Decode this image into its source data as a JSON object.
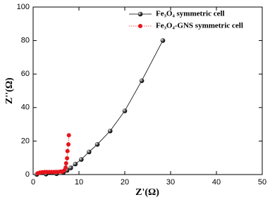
{
  "chart_data": {
    "type": "line",
    "x_label": "Z'(Ω)",
    "y_label": "Z''(Ω)",
    "xlim": [
      0,
      50
    ],
    "xticks": [
      0,
      10,
      20,
      30,
      40,
      50
    ],
    "ylim": [
      0,
      100
    ],
    "yticks": [
      0,
      20,
      40,
      60,
      80,
      100
    ],
    "legend": "top-right",
    "series": [
      {
        "name": "Fe₃O₄ symmetric cell",
        "color": "#000000",
        "line_style": "solid",
        "x": [
          0.8,
          2.8,
          5.1,
          6.6,
          7.4,
          8.2,
          9.2,
          10.5,
          12.2,
          14,
          16.8,
          20,
          23.7,
          28.3
        ],
        "values": [
          0.1,
          0.3,
          0.5,
          1.3,
          2.5,
          4,
          6.3,
          9,
          13.5,
          18,
          26,
          38,
          56,
          80
        ]
      },
      {
        "name": "Fe₃O₄-GNS symmetric cell",
        "color": "#e8141b",
        "line_style": "dotted",
        "x": [
          1,
          1.5,
          2,
          2.5,
          3,
          3.5,
          4,
          4.5,
          5,
          5.5,
          6,
          6.3,
          6.8,
          7.1,
          7.2,
          7.4,
          7.5,
          7.7,
          7.8
        ],
        "values": [
          0.8,
          1.2,
          1.4,
          1.5,
          1.5,
          1.5,
          1.5,
          1.5,
          1.6,
          1.6,
          1.8,
          1.7,
          2.5,
          4.2,
          6.7,
          9.7,
          14,
          18,
          23.5
        ]
      }
    ]
  }
}
